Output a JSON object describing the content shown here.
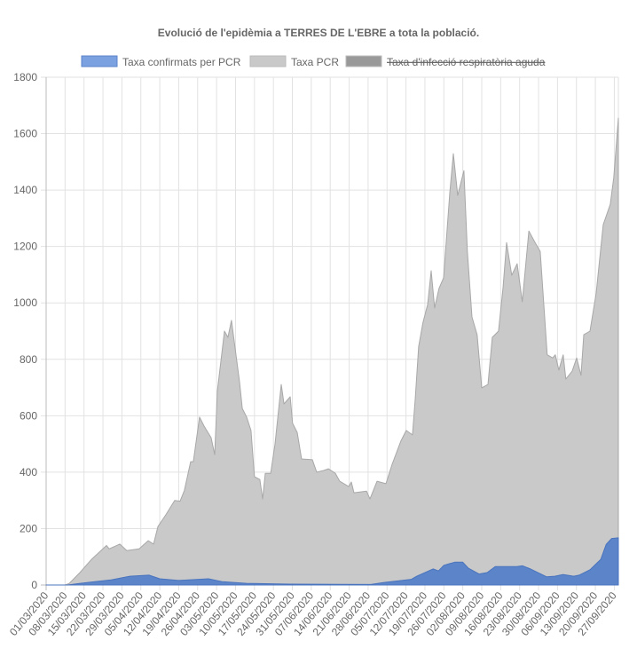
{
  "chart_data": {
    "type": "area",
    "title": "Evolució de l'epidèmia a TERRES DE L'EBRE a tota la població.",
    "xlabel": "",
    "ylabel": "",
    "start_date": "01/03/2020",
    "x_unit": "days since 01/03/2020",
    "xlim": [
      0,
      211.5
    ],
    "ylim": [
      0,
      1800
    ],
    "y_ticks": [
      "0",
      "200",
      "400",
      "600",
      "800",
      "1000",
      "1200",
      "1400",
      "1600",
      "1800"
    ],
    "x_ticks": [
      "01/03/2020",
      "08/03/2020",
      "15/03/2020",
      "22/03/2020",
      "29/03/2020",
      "05/04/2020",
      "12/04/2020",
      "19/04/2020",
      "26/04/2020",
      "03/05/2020",
      "10/05/2020",
      "17/05/2020",
      "24/05/2020",
      "31/05/2020",
      "07/06/2020",
      "14/06/2020",
      "21/06/2020",
      "28/06/2020",
      "05/07/2020",
      "12/07/2020",
      "19/07/2020",
      "26/07/2020",
      "02/08/2020",
      "09/08/2020",
      "16/08/2020",
      "23/08/2020",
      "30/08/2020",
      "06/09/2020",
      "13/09/2020",
      "20/09/2020",
      "27/09/2020"
    ],
    "grid": true,
    "legend_position": "top",
    "series": [
      {
        "name": "Taxa confirmats per PCR",
        "color": "#5b84c9",
        "legend_color": "#7ba1e0",
        "hidden": false,
        "points": [
          [
            0,
            0
          ],
          [
            8,
            0
          ],
          [
            12,
            5
          ],
          [
            18,
            12
          ],
          [
            24,
            18
          ],
          [
            31,
            31
          ],
          [
            38,
            35
          ],
          [
            42,
            22
          ],
          [
            49,
            16
          ],
          [
            60,
            22
          ],
          [
            65,
            12
          ],
          [
            74,
            6
          ],
          [
            90,
            3
          ],
          [
            120,
            2
          ],
          [
            125,
            9
          ],
          [
            135,
            20
          ],
          [
            137,
            31
          ],
          [
            143,
            57
          ],
          [
            145,
            50
          ],
          [
            147,
            70
          ],
          [
            151,
            81
          ],
          [
            154,
            81
          ],
          [
            156,
            60
          ],
          [
            160,
            39
          ],
          [
            163,
            44
          ],
          [
            166,
            65
          ],
          [
            170,
            65
          ],
          [
            174,
            65
          ],
          [
            176,
            68
          ],
          [
            179,
            57
          ],
          [
            185,
            29
          ],
          [
            188,
            31
          ],
          [
            191,
            37
          ],
          [
            195,
            31
          ],
          [
            197,
            35
          ],
          [
            201,
            54
          ],
          [
            205,
            91
          ],
          [
            207,
            144
          ],
          [
            209,
            165
          ],
          [
            211.5,
            167
          ]
        ]
      },
      {
        "name": "Taxa PCR",
        "color": "#c9c9c9",
        "legend_color": "#c9c9c9",
        "hidden": false,
        "points": [
          [
            0,
            0
          ],
          [
            7,
            0
          ],
          [
            8.5,
            5
          ],
          [
            12.5,
            44
          ],
          [
            16.7,
            90
          ],
          [
            22.3,
            140
          ],
          [
            23.3,
            128
          ],
          [
            27.2,
            145
          ],
          [
            29.8,
            122
          ],
          [
            34.4,
            128
          ],
          [
            37.7,
            157
          ],
          [
            39.7,
            145
          ],
          [
            41.3,
            207
          ],
          [
            44.3,
            250
          ],
          [
            47.5,
            300
          ],
          [
            49.5,
            297
          ],
          [
            51.1,
            335
          ],
          [
            53.4,
            437
          ],
          [
            54.4,
            437
          ],
          [
            56.7,
            595
          ],
          [
            58.4,
            563
          ],
          [
            61,
            522
          ],
          [
            62.3,
            462
          ],
          [
            63.3,
            688
          ],
          [
            65.9,
            900
          ],
          [
            67.2,
            878
          ],
          [
            68.5,
            938
          ],
          [
            71.5,
            720
          ],
          [
            72.5,
            626
          ],
          [
            74.1,
            595
          ],
          [
            75.7,
            548
          ],
          [
            77,
            384
          ],
          [
            79,
            374
          ],
          [
            80,
            305
          ],
          [
            81,
            396
          ],
          [
            83,
            396
          ],
          [
            84.6,
            500
          ],
          [
            86.9,
            711
          ],
          [
            87.9,
            642
          ],
          [
            90.2,
            667
          ],
          [
            91.1,
            573
          ],
          [
            92.8,
            541
          ],
          [
            94.4,
            447
          ],
          [
            98.4,
            444
          ],
          [
            100,
            400
          ],
          [
            102.6,
            406
          ],
          [
            104.3,
            412
          ],
          [
            106.9,
            396
          ],
          [
            108.5,
            368
          ],
          [
            111.8,
            349
          ],
          [
            112.8,
            365
          ],
          [
            113.8,
            327
          ],
          [
            118.4,
            333
          ],
          [
            119.7,
            305
          ],
          [
            122.3,
            368
          ],
          [
            125.6,
            359
          ],
          [
            127.9,
            428
          ],
          [
            131.1,
            510
          ],
          [
            133.1,
            548
          ],
          [
            135.4,
            532
          ],
          [
            136.4,
            658
          ],
          [
            137.7,
            846
          ],
          [
            139.3,
            931
          ],
          [
            141,
            994
          ],
          [
            142.3,
            1114
          ],
          [
            143.6,
            982
          ],
          [
            145.2,
            1051
          ],
          [
            146.9,
            1089
          ],
          [
            149.2,
            1391
          ],
          [
            150.5,
            1529
          ],
          [
            152.1,
            1381
          ],
          [
            154.4,
            1469
          ],
          [
            155.7,
            1183
          ],
          [
            157.4,
            950
          ],
          [
            159.3,
            887
          ],
          [
            161,
            699
          ],
          [
            163.3,
            711
          ],
          [
            164.9,
            878
          ],
          [
            167.2,
            900
          ],
          [
            168.9,
            1057
          ],
          [
            170.2,
            1214
          ],
          [
            172.1,
            1098
          ],
          [
            174.1,
            1139
          ],
          [
            176,
            1004
          ],
          [
            178.4,
            1255
          ],
          [
            180.7,
            1214
          ],
          [
            182.6,
            1183
          ],
          [
            185.2,
            816
          ],
          [
            187.2,
            805
          ],
          [
            188.2,
            816
          ],
          [
            189.5,
            762
          ],
          [
            191.1,
            816
          ],
          [
            192.1,
            730
          ],
          [
            194.4,
            758
          ],
          [
            196.1,
            805
          ],
          [
            197.7,
            743
          ],
          [
            198.7,
            887
          ],
          [
            201,
            900
          ],
          [
            203.3,
            1035
          ],
          [
            205.9,
            1277
          ],
          [
            208.5,
            1350
          ],
          [
            209.8,
            1444
          ],
          [
            211.5,
            1655
          ]
        ]
      },
      {
        "name": "Taxa d'infecció respiratòria aguda",
        "color": "#999999",
        "legend_color": "#999999",
        "hidden": true,
        "points": []
      }
    ]
  }
}
